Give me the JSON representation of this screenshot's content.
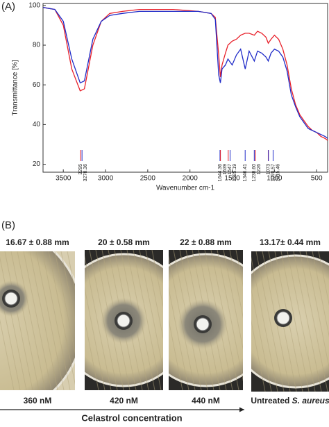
{
  "panel_labels": [
    "(A)",
    "(B)"
  ],
  "chart_data": {
    "type": "line",
    "x_label": "Wavenumber cm-1",
    "y_label": "Transmittance [%]",
    "x": [
      3740,
      3600,
      3500,
      3400,
      3300,
      3250,
      3150,
      3050,
      2950,
      2800,
      2600,
      2200,
      1900,
      1750,
      1700,
      1660,
      1640,
      1620,
      1580,
      1550,
      1500,
      1450,
      1400,
      1346,
      1300,
      1238,
      1200,
      1150,
      1100,
      1073,
      1040,
      1000,
      950,
      900,
      850,
      800,
      750,
      700,
      650,
      600,
      550,
      500,
      450,
      400,
      370
    ],
    "series": [
      {
        "color": "#e8202a",
        "values": [
          99,
          98,
          90,
          68,
          57,
          58,
          80,
          92,
          96,
          97,
          98,
          98,
          97,
          96,
          94,
          75,
          64,
          70,
          76,
          80,
          82,
          83,
          85,
          86,
          86,
          85,
          87,
          86,
          84,
          81,
          83,
          85,
          83,
          78,
          70,
          58,
          50,
          45,
          42,
          39,
          37,
          36,
          34,
          33,
          32
        ]
      },
      {
        "color": "#1f2bc8",
        "values": [
          99,
          98,
          92,
          73,
          61,
          62,
          83,
          92,
          95,
          96,
          97,
          97,
          97,
          96,
          93,
          65,
          61,
          68,
          70,
          73,
          70,
          75,
          78,
          68,
          77,
          72,
          77,
          76,
          74,
          72,
          76,
          78,
          77,
          74,
          67,
          55,
          49,
          44,
          41,
          38,
          37,
          36,
          35,
          34,
          33
        ]
      }
    ],
    "xlim": [
      3740,
      370
    ],
    "ylim": [
      16,
      101
    ],
    "xticks": [
      3500,
      3000,
      2500,
      2000,
      1500,
      1000,
      500
    ],
    "yticks": [
      20,
      40,
      60,
      80,
      100
    ],
    "peaks": [
      {
        "value": 3295,
        "label": "3295",
        "color": "#e8202a"
      },
      {
        "value": 3278.36,
        "label": "3278.36",
        "color": "#1f2bc8"
      },
      {
        "value": 1644.36,
        "label": "1644.36",
        "color": "#1f2bc8"
      },
      {
        "value": 1639,
        "label": "1639",
        "color": "#e8202a"
      },
      {
        "value": 1547,
        "label": "1547",
        "color": "#e8202a"
      },
      {
        "value": 1525.19,
        "label": "1525.19",
        "color": "#1f2bc8"
      },
      {
        "value": 1346.41,
        "label": "1346.41",
        "color": "#1f2bc8"
      },
      {
        "value": 1238.6,
        "label": "1238.60",
        "color": "#1f2bc8"
      },
      {
        "value": 1226,
        "label": "1226",
        "color": "#e8202a"
      },
      {
        "value": 1073,
        "label": "1073",
        "color": "#e8202a"
      },
      {
        "value": 1070.57,
        "label": "1070.57",
        "color": "#1f2bc8"
      },
      {
        "value": 1015.46,
        "label": "1015.46",
        "color": "#1f2bc8"
      }
    ]
  },
  "plates": [
    {
      "zone": "16.67 ± 0.88 mm",
      "caption": "360 nM"
    },
    {
      "zone": "20 ± 0.58 mm",
      "caption": "420 nM"
    },
    {
      "zone": "22 ± 0.88 mm",
      "caption": "440 nM"
    },
    {
      "zone": "13.17± 0.44 mm",
      "caption": "Untreated ",
      "caption_italic": "S. aureus"
    }
  ],
  "concentration_axis": "Celastrol concentration"
}
